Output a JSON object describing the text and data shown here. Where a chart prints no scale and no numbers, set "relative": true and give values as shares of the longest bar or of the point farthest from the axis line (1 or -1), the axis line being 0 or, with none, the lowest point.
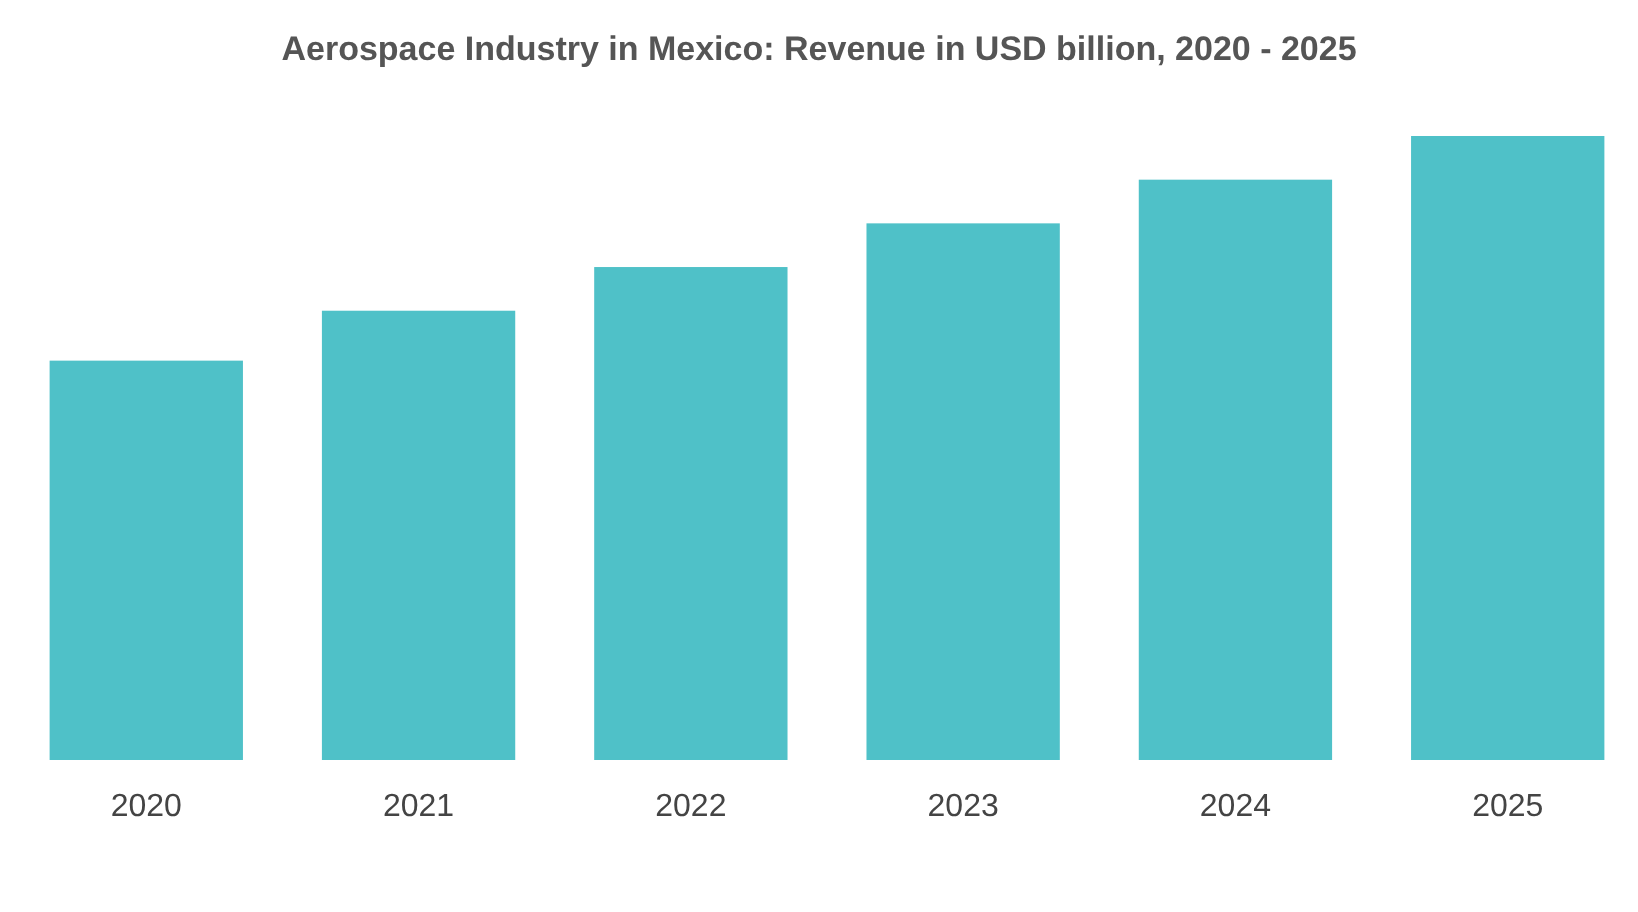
{
  "chart_data": {
    "type": "bar",
    "title": "Aerospace Industry in Mexico: Revenue in USD billion, 2020 - 2025",
    "categories": [
      "2020",
      "2021",
      "2022",
      "2023",
      "2024",
      "2025"
    ],
    "values": [
      0.64,
      0.72,
      0.79,
      0.86,
      0.93,
      1
    ],
    "color": "#4fc1c8",
    "relative": true
  }
}
